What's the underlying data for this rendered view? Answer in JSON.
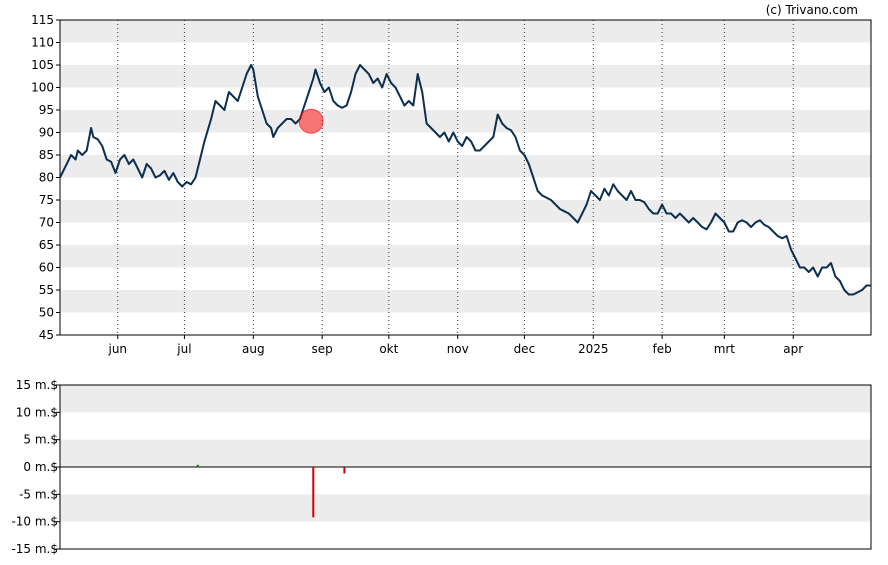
{
  "credit": "(c) Trivano.com",
  "chart_data": [
    {
      "type": "line",
      "ylim": [
        45,
        115
      ],
      "yticks": [
        45,
        50,
        55,
        60,
        65,
        70,
        75,
        80,
        85,
        90,
        95,
        100,
        105,
        110,
        115
      ],
      "x_range_days": [
        0,
        365
      ],
      "month_ticks": [
        {
          "label": "jun",
          "day": 26
        },
        {
          "label": "jul",
          "day": 56
        },
        {
          "label": "aug",
          "day": 87
        },
        {
          "label": "sep",
          "day": 118
        },
        {
          "label": "okt",
          "day": 148
        },
        {
          "label": "nov",
          "day": 179
        },
        {
          "label": "dec",
          "day": 209
        },
        {
          "label": "2025",
          "day": 240
        },
        {
          "label": "feb",
          "day": 271
        },
        {
          "label": "mrt",
          "day": 299
        },
        {
          "label": "apr",
          "day": 330
        }
      ],
      "line_color": "#0d3050",
      "series": [
        {
          "points": [
            [
              0,
              80
            ],
            [
              3,
              83
            ],
            [
              5,
              85
            ],
            [
              7,
              84
            ],
            [
              8,
              86
            ],
            [
              10,
              85
            ],
            [
              12,
              86
            ],
            [
              14,
              91
            ],
            [
              15,
              89
            ],
            [
              17,
              88.5
            ],
            [
              19,
              87
            ],
            [
              21,
              84
            ],
            [
              23,
              83.5
            ],
            [
              25,
              81
            ],
            [
              27,
              84
            ],
            [
              29,
              85
            ],
            [
              31,
              83
            ],
            [
              33,
              84
            ],
            [
              35,
              82
            ],
            [
              37,
              80
            ],
            [
              39,
              83
            ],
            [
              41,
              82
            ],
            [
              43,
              80
            ],
            [
              45,
              80.5
            ],
            [
              47,
              81.5
            ],
            [
              49,
              79.5
            ],
            [
              51,
              81
            ],
            [
              53,
              79
            ],
            [
              55,
              78
            ],
            [
              57,
              79
            ],
            [
              59,
              78.5
            ],
            [
              61,
              80
            ],
            [
              63,
              84
            ],
            [
              65,
              88
            ],
            [
              68,
              93
            ],
            [
              70,
              97
            ],
            [
              72,
              96
            ],
            [
              74,
              95
            ],
            [
              76,
              99
            ],
            [
              78,
              98
            ],
            [
              80,
              97
            ],
            [
              82,
              100
            ],
            [
              84,
              103
            ],
            [
              86,
              105
            ],
            [
              87,
              104
            ],
            [
              89,
              98
            ],
            [
              91,
              95
            ],
            [
              93,
              92
            ],
            [
              95,
              91
            ],
            [
              96,
              89
            ],
            [
              98,
              91
            ],
            [
              100,
              92
            ],
            [
              102,
              93
            ],
            [
              104,
              93
            ],
            [
              106,
              92
            ],
            [
              108,
              93
            ],
            [
              110,
              96
            ],
            [
              112,
              99
            ],
            [
              114,
              102
            ],
            [
              115,
              104
            ],
            [
              117,
              101
            ],
            [
              119,
              99
            ],
            [
              121,
              100
            ],
            [
              123,
              97
            ],
            [
              125,
              96
            ],
            [
              127,
              95.5
            ],
            [
              129,
              96
            ],
            [
              131,
              99
            ],
            [
              133,
              103
            ],
            [
              135,
              105
            ],
            [
              137,
              104
            ],
            [
              139,
              103
            ],
            [
              141,
              101
            ],
            [
              143,
              102
            ],
            [
              145,
              100
            ],
            [
              147,
              103
            ],
            [
              149,
              101
            ],
            [
              151,
              100
            ],
            [
              153,
              98
            ],
            [
              155,
              96
            ],
            [
              157,
              97
            ],
            [
              159,
              96
            ],
            [
              161,
              103
            ],
            [
              163,
              99
            ],
            [
              165,
              92
            ],
            [
              167,
              91
            ],
            [
              169,
              90
            ],
            [
              171,
              89
            ],
            [
              173,
              90
            ],
            [
              175,
              88
            ],
            [
              177,
              90
            ],
            [
              179,
              88
            ],
            [
              181,
              87
            ],
            [
              183,
              89
            ],
            [
              185,
              88
            ],
            [
              187,
              86
            ],
            [
              189,
              86
            ],
            [
              191,
              87
            ],
            [
              193,
              88
            ],
            [
              195,
              89
            ],
            [
              197,
              94
            ],
            [
              199,
              92
            ],
            [
              201,
              91
            ],
            [
              203,
              90.5
            ],
            [
              205,
              89
            ],
            [
              207,
              86
            ],
            [
              209,
              85
            ],
            [
              211,
              83
            ],
            [
              213,
              80
            ],
            [
              215,
              77
            ],
            [
              217,
              76
            ],
            [
              219,
              75.5
            ],
            [
              221,
              75
            ],
            [
              223,
              74
            ],
            [
              225,
              73
            ],
            [
              227,
              72.5
            ],
            [
              229,
              72
            ],
            [
              231,
              71
            ],
            [
              233,
              70
            ],
            [
              235,
              72
            ],
            [
              237,
              74
            ],
            [
              239,
              77
            ],
            [
              241,
              76
            ],
            [
              243,
              75
            ],
            [
              245,
              77.5
            ],
            [
              247,
              76
            ],
            [
              249,
              78.5
            ],
            [
              251,
              77
            ],
            [
              253,
              76
            ],
            [
              255,
              75
            ],
            [
              257,
              77
            ],
            [
              259,
              75
            ],
            [
              261,
              75
            ],
            [
              263,
              74.5
            ],
            [
              265,
              73
            ],
            [
              267,
              72
            ],
            [
              269,
              72
            ],
            [
              271,
              74
            ],
            [
              273,
              72
            ],
            [
              275,
              72
            ],
            [
              277,
              71
            ],
            [
              279,
              72
            ],
            [
              281,
              71
            ],
            [
              283,
              70
            ],
            [
              285,
              71
            ],
            [
              287,
              70
            ],
            [
              289,
              69
            ],
            [
              291,
              68.5
            ],
            [
              293,
              70
            ],
            [
              295,
              72
            ],
            [
              297,
              71
            ],
            [
              299,
              70
            ],
            [
              301,
              68
            ],
            [
              303,
              68
            ],
            [
              305,
              70
            ],
            [
              307,
              70.5
            ],
            [
              309,
              70
            ],
            [
              311,
              69
            ],
            [
              313,
              70
            ],
            [
              315,
              70.5
            ],
            [
              317,
              69.5
            ],
            [
              319,
              69
            ],
            [
              321,
              68
            ],
            [
              323,
              67
            ],
            [
              325,
              66.5
            ],
            [
              327,
              67
            ],
            [
              329,
              64
            ],
            [
              331,
              62
            ],
            [
              333,
              60
            ],
            [
              335,
              60
            ],
            [
              337,
              59
            ],
            [
              339,
              60
            ],
            [
              341,
              58
            ],
            [
              343,
              60
            ],
            [
              345,
              60
            ],
            [
              347,
              61
            ],
            [
              349,
              58
            ],
            [
              351,
              57
            ],
            [
              353,
              55
            ],
            [
              355,
              54
            ],
            [
              357,
              54
            ],
            [
              359,
              54.5
            ],
            [
              361,
              55
            ],
            [
              363,
              56
            ],
            [
              365,
              56
            ]
          ]
        }
      ],
      "highlight": {
        "day": 113,
        "value": 92.5,
        "color": "#ff0000"
      }
    },
    {
      "type": "bar",
      "ylim": [
        -15,
        15
      ],
      "yticks": [
        {
          "value": 15,
          "label": "15 m.$"
        },
        {
          "value": 10,
          "label": "10 m.$"
        },
        {
          "value": 5,
          "label": "5 m.$"
        },
        {
          "value": 0,
          "label": "0 m.$"
        },
        {
          "value": -5,
          "label": "-5 m.$"
        },
        {
          "value": -10,
          "label": "-10 m.$"
        },
        {
          "value": -15,
          "label": "-15 m.$"
        }
      ],
      "bars": [
        {
          "day": 62,
          "value": 0.4
        },
        {
          "day": 114,
          "value": -9.2
        },
        {
          "day": 128,
          "value": -1.2
        }
      ],
      "positive_color": "#008000",
      "negative_color": "#cc0000"
    }
  ]
}
